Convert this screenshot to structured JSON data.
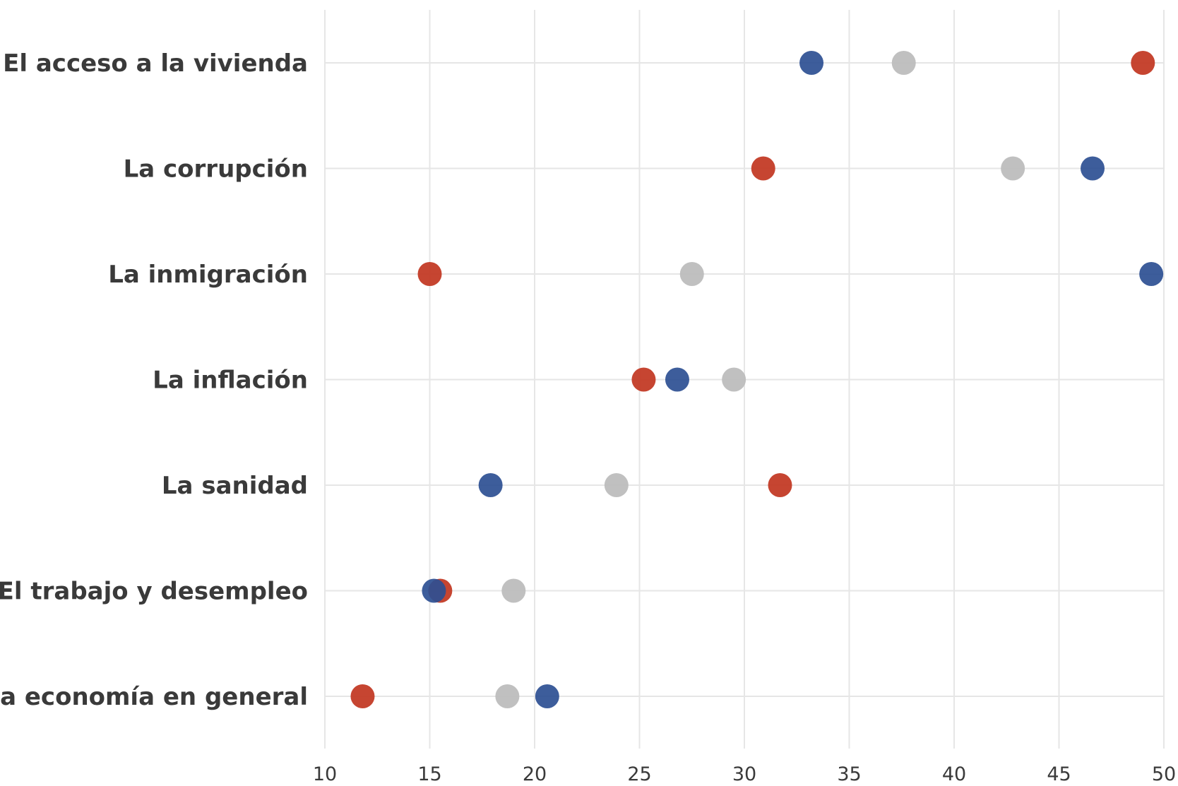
{
  "chart_data": {
    "type": "scatter",
    "categories": [
      "El acceso a la vivienda",
      "La corrupción",
      "La inmigración",
      "La inflación",
      "La sanidad",
      "El trabajo y desempleo",
      "La economía en general"
    ],
    "series": [
      {
        "color": "#2c4f93",
        "values": [
          33.2,
          46.6,
          49.4,
          26.8,
          17.9,
          15.2,
          20.6
        ]
      },
      {
        "color": "#c33b26",
        "values": [
          49.0,
          30.9,
          15.0,
          25.2,
          31.7,
          15.5,
          11.8
        ]
      },
      {
        "color": "#bdbdbd",
        "values": [
          37.6,
          42.8,
          27.5,
          29.5,
          23.9,
          19.0,
          18.7
        ]
      }
    ],
    "xlim": [
      10,
      50
    ],
    "xticks": [
      "10",
      "15",
      "20",
      "25",
      "30",
      "35",
      "40",
      "45",
      "50"
    ],
    "grid": true,
    "title": "",
    "xlabel": "",
    "ylabel": ""
  }
}
